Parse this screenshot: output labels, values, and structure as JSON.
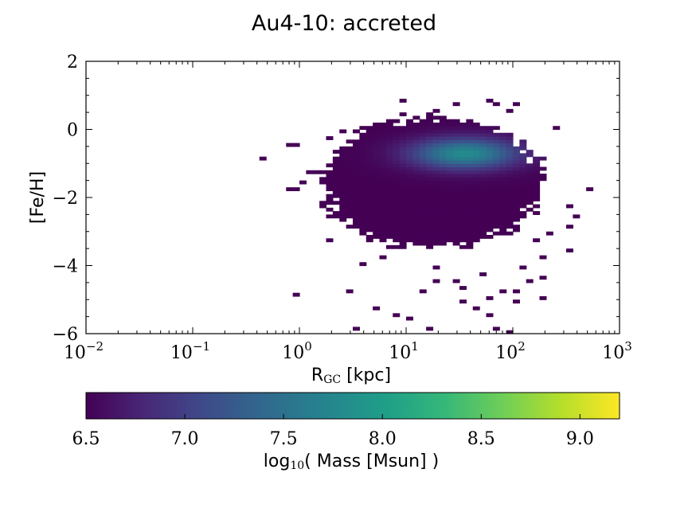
{
  "chart_data": {
    "type": "heatmap",
    "title": "Au4-10: accreted",
    "xlabel_main": "R",
    "xlabel_sub": "GC",
    "xlabel_unit": " [kpc]",
    "ylabel": "[Fe/H]",
    "x_scale": "log",
    "xlim": [
      0.01,
      1000
    ],
    "ylim": [
      -6,
      2
    ],
    "x_ticks": [
      {
        "base": "10",
        "exp": "−2"
      },
      {
        "base": "10",
        "exp": "−1"
      },
      {
        "base": "10",
        "exp": "0"
      },
      {
        "base": "10",
        "exp": "1"
      },
      {
        "base": "10",
        "exp": "2"
      },
      {
        "base": "10",
        "exp": "3"
      }
    ],
    "y_ticks": [
      "2",
      "0",
      "−2",
      "−4",
      "−6"
    ],
    "y_tick_values": [
      2,
      0,
      -2,
      -4,
      -6
    ],
    "colormap": "viridis",
    "colorbar": {
      "label_main": "log",
      "label_sub": "10",
      "label_rest": "( Mass [Msun] )",
      "range": [
        6.5,
        9.2
      ],
      "ticks": [
        "6.5",
        "7.0",
        "7.5",
        "8.0",
        "8.5",
        "9.0"
      ],
      "tick_values": [
        6.5,
        7.0,
        7.5,
        8.0,
        8.5,
        9.0
      ]
    },
    "distribution": {
      "main_region": {
        "log_r_range": [
          0.3,
          2.3
        ],
        "feh_range": [
          -3.6,
          0.3
        ]
      },
      "peak": {
        "log_r": 1.55,
        "feh": -0.7,
        "log_mass": 7.8
      },
      "background_log_mass": 6.5
    },
    "scattered_cells": [
      [
        -0.33,
        -0.85
      ],
      [
        -0.1,
        -0.5
      ],
      [
        -0.05,
        -0.5
      ],
      [
        0.1,
        -1.2
      ],
      [
        0.2,
        -1.45
      ],
      [
        -0.1,
        -1.8
      ],
      [
        -0.02,
        -1.8
      ],
      [
        0.05,
        -1.6
      ],
      [
        0.2,
        -2.2
      ],
      [
        0.25,
        -2.4
      ],
      [
        0.3,
        -2.6
      ],
      [
        0.35,
        -2.6
      ],
      [
        0.25,
        -3.3
      ],
      [
        0.65,
        -3.1
      ],
      [
        -0.05,
        -4.85
      ],
      [
        0.45,
        -4.8
      ],
      [
        0.6,
        -4.0
      ],
      [
        0.25,
        -0.3
      ],
      [
        0.4,
        -0.1
      ],
      [
        0.55,
        -0.05
      ],
      [
        0.95,
        -0.7
      ],
      [
        0.75,
        -2.1
      ],
      [
        0.45,
        -1.0
      ],
      [
        0.5,
        -2.9
      ],
      [
        0.7,
        -2.9
      ],
      [
        0.8,
        -3.7
      ],
      [
        1.35,
        -3.35
      ],
      [
        1.3,
        -4.1
      ],
      [
        1.45,
        -4.4
      ],
      [
        1.15,
        -4.8
      ],
      [
        1.3,
        -4.5
      ],
      [
        1.9,
        -4.75
      ],
      [
        2.0,
        -4.8
      ],
      [
        1.55,
        -4.65
      ],
      [
        2.1,
        -4.05
      ],
      [
        1.7,
        -4.25
      ],
      [
        2.3,
        -3.7
      ],
      [
        2.2,
        -3.3
      ],
      [
        2.5,
        -3.55
      ],
      [
        2.35,
        -3.05
      ],
      [
        2.55,
        -2.85
      ],
      [
        2.6,
        -2.6
      ],
      [
        2.5,
        -2.2
      ],
      [
        2.7,
        -1.7
      ],
      [
        0.95,
        0.8
      ],
      [
        1.25,
        0.5
      ],
      [
        1.85,
        0.75
      ],
      [
        2.05,
        0.75
      ],
      [
        1.75,
        0.8
      ],
      [
        1.45,
        0.75
      ],
      [
        1.95,
        0.6
      ],
      [
        2.4,
        0.0
      ],
      [
        0.85,
        0.2
      ],
      [
        1.05,
        -0.15
      ],
      [
        0.9,
        -5.4
      ],
      [
        0.55,
        -5.85
      ],
      [
        1.0,
        -5.55
      ],
      [
        1.2,
        -5.85
      ],
      [
        1.75,
        -5.5
      ],
      [
        1.85,
        -5.85
      ],
      [
        1.95,
        -5.95
      ],
      [
        1.65,
        -5.2
      ],
      [
        1.55,
        -5.1
      ],
      [
        0.7,
        -5.25
      ],
      [
        2.15,
        -4.4
      ],
      [
        2.25,
        -4.35
      ],
      [
        2.3,
        -4.95
      ],
      [
        2.0,
        -5.05
      ],
      [
        1.8,
        -4.95
      ]
    ]
  }
}
